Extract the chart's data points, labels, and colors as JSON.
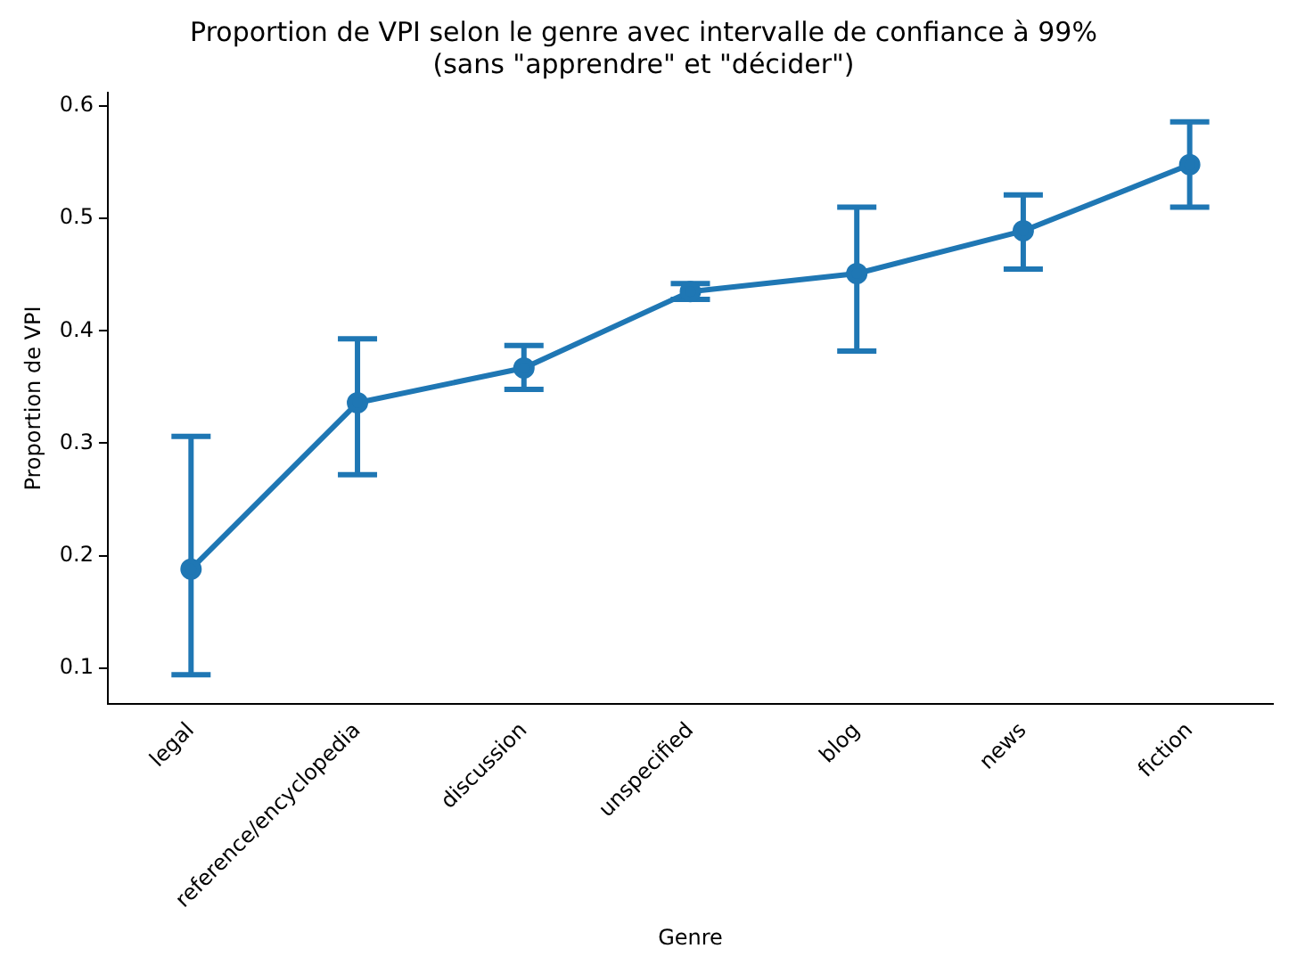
{
  "chart_data": {
    "type": "line",
    "title": "Proportion de VPI selon le genre avec intervalle de confiance à 99%\n(sans \"apprendre\" et \"décider\")",
    "xlabel": "Genre",
    "ylabel": "Proportion de VPI",
    "categories": [
      "legal",
      "reference/encyclopedia",
      "discussion",
      "unspecified",
      "blog",
      "news",
      "fiction"
    ],
    "values": [
      0.188,
      0.336,
      0.367,
      0.435,
      0.451,
      0.489,
      0.548
    ],
    "errors": [
      [
        0.094,
        0.306
      ],
      [
        0.272,
        0.393
      ],
      [
        0.348,
        0.387
      ],
      [
        0.428,
        0.442
      ],
      [
        0.382,
        0.51
      ],
      [
        0.455,
        0.521
      ],
      [
        0.51,
        0.586
      ]
    ],
    "color": "#1f77b4",
    "marker": "circle",
    "ylim": [
      0.068,
      0.612
    ],
    "yticks": [
      0.1,
      0.2,
      0.3,
      0.4,
      0.5,
      0.6
    ],
    "grid": false,
    "legend": false
  }
}
